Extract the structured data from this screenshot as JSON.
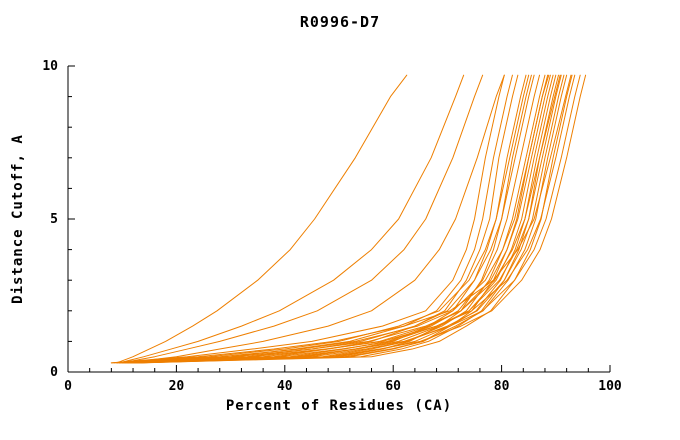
{
  "chart_data": {
    "type": "line",
    "title": "R0996-D7",
    "xlabel": "Percent of Residues (CA)",
    "ylabel": "Distance Cutoff, A",
    "xlim": [
      0,
      100
    ],
    "ylim": [
      0,
      10
    ],
    "xticks": [
      0,
      20,
      40,
      60,
      80,
      100
    ],
    "yticks": [
      0,
      5,
      10
    ],
    "x_minor_tick_step": 4,
    "y_minor_tick_step": 1,
    "grid": false,
    "legend": "none",
    "line_color": "#ee7f00",
    "axis_color": "#000000",
    "y_samples": [
      0.3,
      0.5,
      0.75,
      1,
      1.5,
      2,
      3,
      4,
      5,
      7,
      9,
      9.7
    ],
    "series_x": [
      [
        9,
        12,
        15,
        18,
        23,
        27.5,
        35,
        41,
        45.5,
        53,
        59.5,
        62.5
      ],
      [
        9.5,
        14,
        19,
        24,
        32,
        39,
        49,
        56,
        61,
        67,
        71.5,
        73
      ],
      [
        10,
        16,
        22,
        28,
        38,
        46,
        56,
        62,
        66,
        71,
        75,
        76.5
      ],
      [
        10.5,
        20,
        28,
        36,
        48,
        56,
        64,
        68.5,
        71.5,
        75.5,
        79,
        80.5
      ],
      [
        8,
        22,
        34,
        45,
        58,
        66,
        71,
        73.5,
        75,
        77,
        79.5,
        80.5
      ],
      [
        9,
        30,
        42,
        52,
        62,
        68,
        72.5,
        75,
        76.5,
        78.5,
        81,
        82
      ],
      [
        10,
        38,
        48,
        56,
        64,
        69.5,
        73.5,
        76,
        77.8,
        79.5,
        82,
        83
      ],
      [
        11,
        44,
        53,
        60,
        66.5,
        71,
        75,
        77.3,
        79,
        81,
        83.5,
        84.5
      ],
      [
        12,
        50,
        58,
        63,
        68.5,
        72.5,
        76.3,
        78.5,
        80,
        82,
        84.5,
        85.5
      ],
      [
        8.5,
        26,
        40,
        50,
        61,
        68.5,
        74,
        77,
        79,
        81.5,
        84,
        85
      ],
      [
        9.5,
        33,
        45,
        54,
        64,
        70,
        75,
        78,
        80,
        82.5,
        85,
        86
      ],
      [
        10.5,
        41,
        51,
        59,
        67,
        72,
        76.5,
        79.2,
        81,
        83.5,
        86,
        87
      ],
      [
        11.5,
        47,
        56,
        62.5,
        69,
        73.5,
        77.7,
        80.2,
        82,
        84.5,
        87,
        88
      ],
      [
        12.5,
        52,
        60,
        65.5,
        70.5,
        74.5,
        78.5,
        81,
        82.8,
        85,
        87.5,
        88.5
      ],
      [
        9,
        28,
        43,
        53,
        64.5,
        71,
        77,
        80.2,
        82.4,
        85,
        87.5,
        88.7
      ],
      [
        10,
        36,
        48,
        57.5,
        66.5,
        72.5,
        78,
        81,
        83,
        85.5,
        88,
        89
      ],
      [
        11,
        43,
        53.5,
        61,
        68.5,
        74,
        79,
        81.8,
        83.7,
        86,
        88.5,
        89.5
      ],
      [
        12,
        49,
        58,
        64,
        70.5,
        75.3,
        79.8,
        82.5,
        84.3,
        86.5,
        89,
        90
      ],
      [
        13,
        54,
        61.5,
        66.5,
        72,
        76.3,
        80.5,
        83.2,
        85,
        87,
        89.5,
        90.5
      ],
      [
        9.5,
        31,
        45,
        55.5,
        66,
        72.5,
        78.7,
        82,
        84.3,
        87,
        89.8,
        90.8
      ],
      [
        10.5,
        39,
        50.5,
        59.5,
        68,
        74,
        79.6,
        82.8,
        85,
        87.5,
        90,
        91
      ],
      [
        11.5,
        45,
        55,
        62.5,
        70,
        75.5,
        80.5,
        83.6,
        85.7,
        88,
        90.5,
        91.5
      ],
      [
        12.5,
        51,
        59.5,
        65.5,
        71.5,
        76.6,
        81.2,
        84.3,
        86.3,
        88.5,
        91,
        92
      ],
      [
        13.5,
        56,
        63.5,
        68.5,
        73.5,
        78,
        82.4,
        85.3,
        87.3,
        89.5,
        92,
        93
      ],
      [
        10,
        34,
        47.5,
        58,
        68,
        74.5,
        81,
        84.8,
        87.2,
        90,
        92.5,
        93.5
      ],
      [
        11,
        42,
        53,
        62,
        70.5,
        76.5,
        82.4,
        86,
        88.2,
        91,
        93.5,
        94.5
      ],
      [
        12,
        48,
        57.5,
        65,
        72.5,
        78.2,
        83.7,
        87.1,
        89.2,
        92,
        94.5,
        95.5
      ],
      [
        8,
        24,
        38,
        49,
        62,
        70.5,
        78.5,
        83,
        86,
        89,
        91.8,
        92.8
      ]
    ]
  }
}
